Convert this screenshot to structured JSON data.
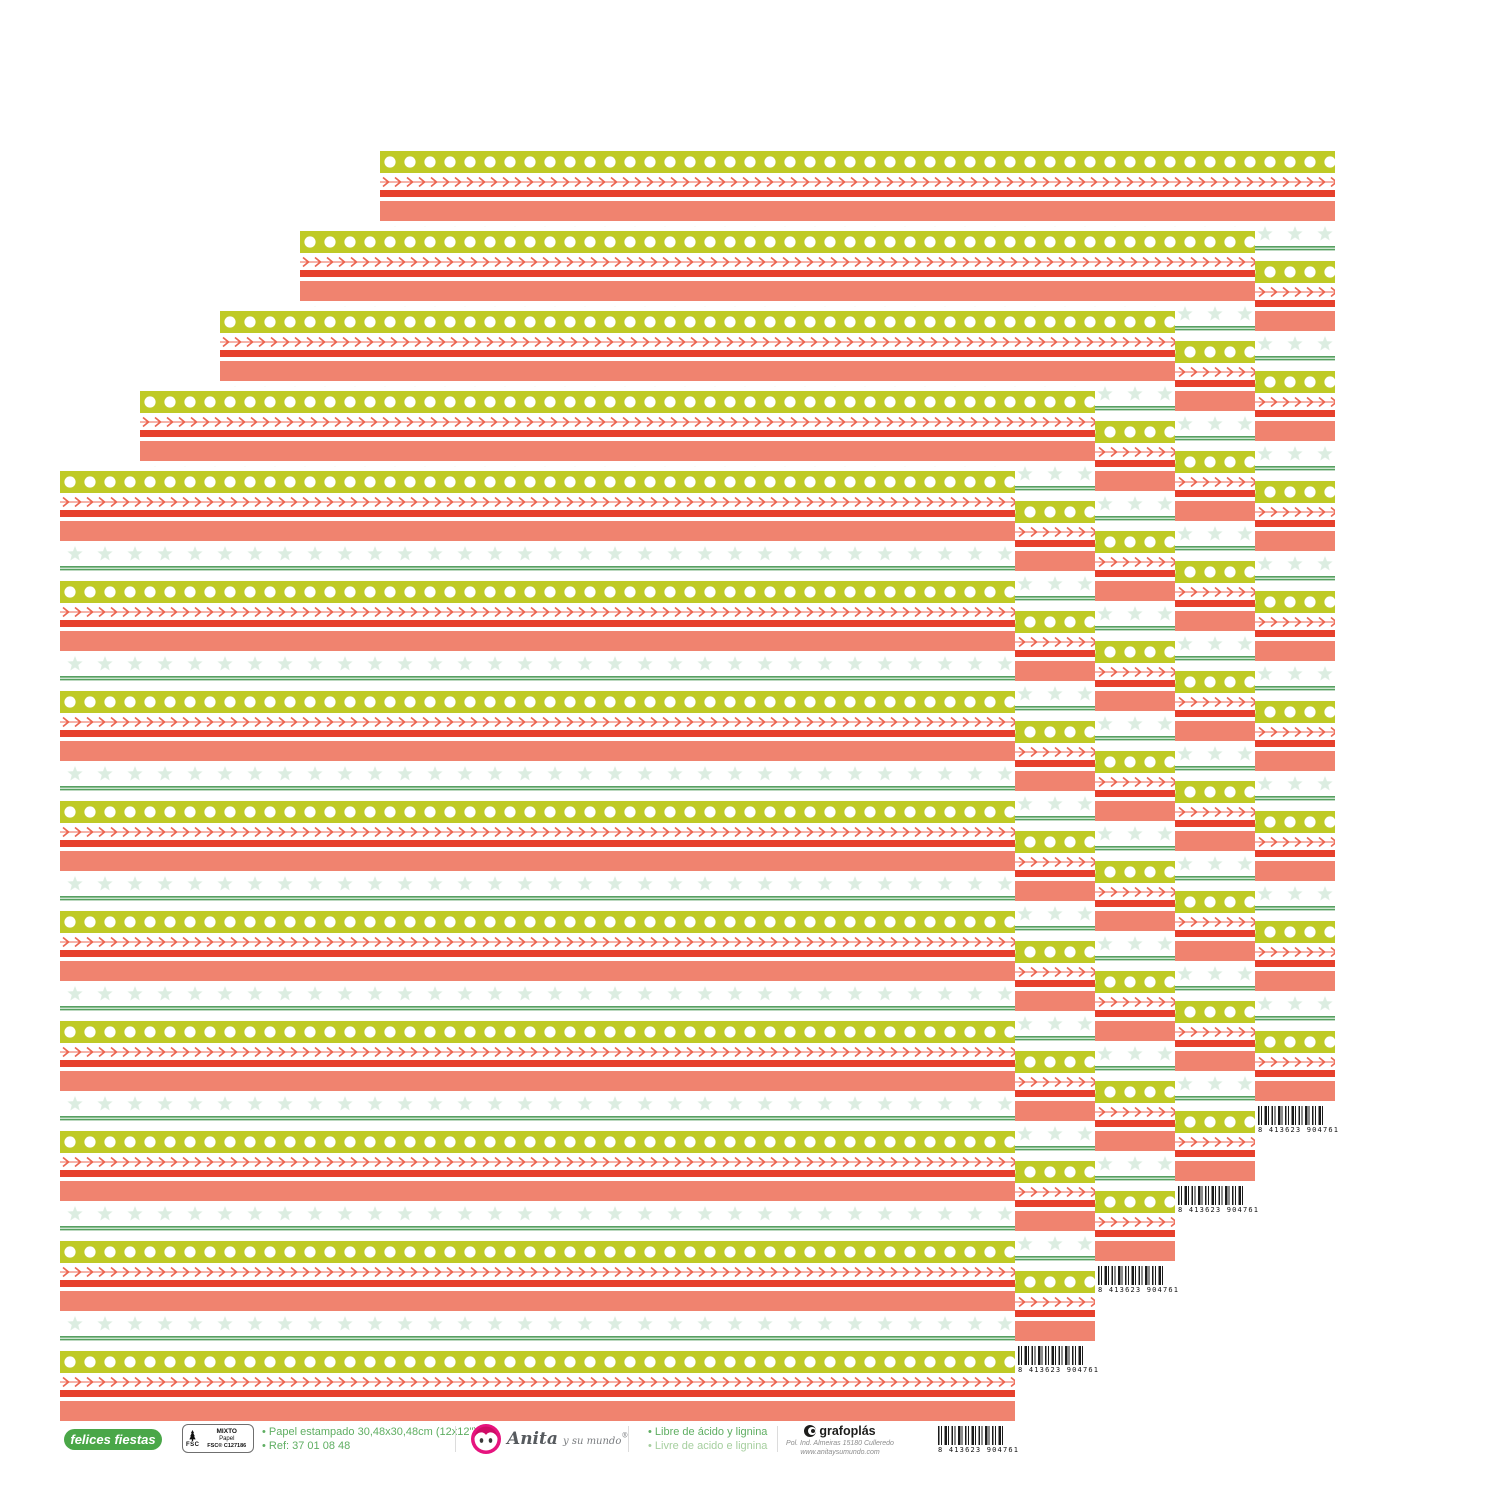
{
  "image": {
    "background": "#ffffff",
    "description": "Cascading stack of 5 identical striped scrapbook paper sheets"
  },
  "pattern_colors": {
    "lime_band": "#bfca26",
    "polka_dot": "#ffffff",
    "arrow_row": "#ec6450",
    "red_stripe": "#e6402c",
    "coral_stripe": "#f0836f",
    "star": "#dcede1",
    "green_line": "#57a161"
  },
  "strip": {
    "series_label": "felices fiestas",
    "pill_color": "#4aa748",
    "fsc": {
      "acronym": "FSC",
      "line1": "MIXTO",
      "line2": "Papel",
      "line3": "FSC® C127186"
    },
    "specs": [
      "• Papel estampado 30,48x30,48cm (12x12\")",
      "• Ref: 37 01 08 48"
    ],
    "brand": {
      "name": "Anita",
      "tagline": "y su mundo",
      "registered": "®",
      "logo_color": "#e6137e"
    },
    "quality": [
      "• Libre de ácido y lignina",
      "• Livre de acido e lignina"
    ],
    "manufacturer": {
      "name": "grafoplás",
      "address": "Pol. Ind. Almeiras 15180 Culleredo",
      "website": "www.anitaysumundo.com"
    },
    "barcode": "8 413623 904761"
  },
  "sheets": {
    "count": 5
  }
}
